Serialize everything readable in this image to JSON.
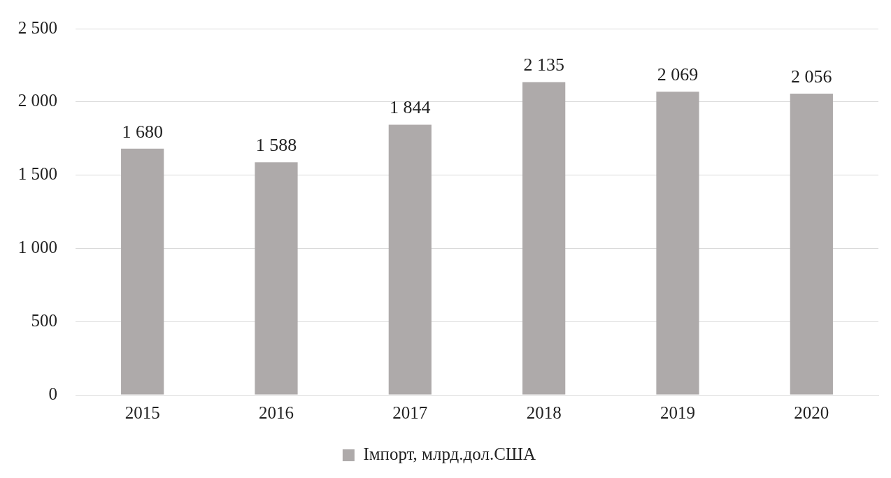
{
  "chart_data": {
    "type": "bar",
    "categories": [
      "2015",
      "2016",
      "2017",
      "2018",
      "2019",
      "2020"
    ],
    "series": [
      {
        "name": "Імпорт, млрд.дол.США",
        "color": "#aeaaaa",
        "values": [
          1680,
          1588,
          1844,
          2135,
          2069,
          2056
        ],
        "value_labels": [
          "1 680",
          "1 588",
          "1 844",
          "2 135",
          "2 069",
          "2 056"
        ]
      }
    ],
    "ylim": [
      0,
      2500
    ],
    "yticks": [
      {
        "value": 0,
        "label": "0"
      },
      {
        "value": 500,
        "label": "500"
      },
      {
        "value": 1000,
        "label": "1 000"
      },
      {
        "value": 1500,
        "label": "1 500"
      },
      {
        "value": 2000,
        "label": "2 000"
      },
      {
        "value": 2500,
        "label": "2 500"
      }
    ],
    "grid": "y",
    "legend": "bottom"
  }
}
